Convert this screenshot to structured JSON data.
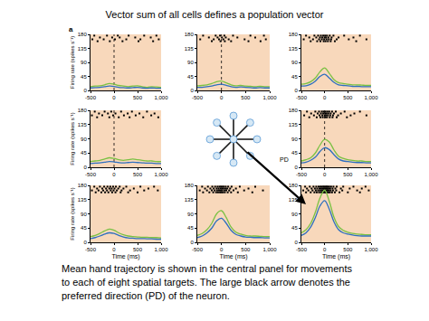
{
  "slide": {
    "title": "Vector sum of all cells defines a population vector",
    "panel_label": "a",
    "diagram_label": "PD",
    "caption": [
      "Mean hand trajectory is shown in the central panel for movements",
      "to each of eight spatial targets. The large black arrow denotes the",
      "preferred direction (PD) of the neuron."
    ]
  },
  "chart_data": [
    {
      "type": "line",
      "ylabel": "Firing rate (spikes s⁻¹)",
      "onset": 0,
      "x": [
        -500,
        -400,
        -300,
        -200,
        -100,
        0,
        100,
        200,
        300,
        400,
        500,
        600,
        700,
        800,
        900,
        1000
      ],
      "series": [
        {
          "color": "#7ac143",
          "values": [
            12,
            14,
            15,
            18,
            22,
            20,
            16,
            14,
            12,
            14,
            15,
            12,
            10,
            12,
            11,
            10
          ]
        },
        {
          "color": "#2e6fbf",
          "values": [
            8,
            9,
            10,
            12,
            14,
            13,
            10,
            9,
            8,
            9,
            10,
            8,
            7,
            8,
            7,
            7
          ]
        }
      ],
      "raster": [
        {
          "y": 176,
          "times": [
            -420,
            -150,
            80,
            310,
            640,
            900
          ]
        },
        {
          "y": 170,
          "times": [
            -300,
            -40,
            120,
            450,
            780
          ]
        },
        {
          "y": 164,
          "times": [
            -460,
            -220,
            20,
            260,
            560,
            950
          ]
        },
        {
          "y": 158,
          "times": [
            -350,
            -90,
            180,
            520,
            830
          ]
        }
      ],
      "xlim": [
        -500,
        1000
      ],
      "ylim": [
        0,
        180
      ],
      "xticks": [
        -500,
        0,
        500,
        {
          "value": 1000,
          "label": "1,000"
        }
      ],
      "yticks": [
        0,
        45,
        90,
        135,
        180
      ]
    },
    {
      "type": "line",
      "onset": 0,
      "x": [
        -500,
        -400,
        -300,
        -200,
        -100,
        0,
        100,
        200,
        300,
        400,
        500,
        600,
        700,
        800,
        900,
        1000
      ],
      "series": [
        {
          "color": "#7ac143",
          "values": [
            15,
            16,
            18,
            22,
            28,
            30,
            24,
            18,
            15,
            16,
            14,
            13,
            12,
            13,
            12,
            12
          ]
        },
        {
          "color": "#2e6fbf",
          "values": [
            10,
            10,
            12,
            14,
            18,
            20,
            16,
            12,
            10,
            11,
            10,
            9,
            8,
            9,
            8,
            8
          ]
        }
      ],
      "raster": [
        {
          "y": 176,
          "times": [
            -380,
            -120,
            -30,
            60,
            240,
            600,
            880
          ]
        },
        {
          "y": 170,
          "times": [
            -260,
            -80,
            10,
            90,
            330,
            700
          ]
        },
        {
          "y": 164,
          "times": [
            -440,
            -160,
            -50,
            40,
            150,
            480,
            920
          ]
        },
        {
          "y": 158,
          "times": [
            -200,
            -20,
            70,
            200,
            560,
            810
          ]
        }
      ],
      "xlim": [
        -500,
        1000
      ],
      "ylim": [
        0,
        180
      ],
      "xticks": [
        -500,
        0,
        500,
        {
          "value": 1000,
          "label": "1,000"
        }
      ],
      "yticks": [
        0,
        45,
        90,
        135,
        180
      ]
    },
    {
      "type": "line",
      "x": [
        -500,
        -400,
        -300,
        -200,
        -100,
        0,
        100,
        200,
        300,
        400,
        500,
        600,
        700,
        800,
        900,
        1000
      ],
      "series": [
        {
          "color": "#7ac143",
          "values": [
            20,
            22,
            28,
            40,
            60,
            72,
            55,
            35,
            25,
            22,
            20,
            18,
            18,
            17,
            16,
            16
          ]
        },
        {
          "color": "#2e6fbf",
          "values": [
            14,
            15,
            20,
            30,
            45,
            52,
            40,
            26,
            18,
            16,
            15,
            13,
            13,
            12,
            12,
            12
          ]
        }
      ],
      "raster": [
        {
          "y": 176,
          "times": [
            -400,
            -220,
            -140,
            -80,
            -30,
            10,
            50,
            110,
            190,
            420,
            760
          ]
        },
        {
          "y": 170,
          "times": [
            -330,
            -180,
            -100,
            -50,
            0,
            30,
            80,
            150,
            300,
            620
          ]
        },
        {
          "y": 164,
          "times": [
            -450,
            -250,
            -120,
            -60,
            -10,
            40,
            90,
            140,
            260,
            520,
            900
          ]
        },
        {
          "y": 158,
          "times": [
            -300,
            -160,
            -90,
            -20,
            20,
            70,
            130,
            220,
            680
          ]
        }
      ],
      "xlim": [
        -500,
        1000
      ],
      "ylim": [
        0,
        180
      ],
      "xticks": [
        -500,
        0,
        500,
        {
          "value": 1000,
          "label": "1,000"
        }
      ],
      "yticks": [
        0,
        45,
        90,
        135,
        180
      ]
    },
    {
      "type": "line",
      "ylabel": "Firing rate (spikes s⁻¹)",
      "onset": 0,
      "x": [
        -500,
        -400,
        -300,
        -200,
        -100,
        0,
        100,
        200,
        300,
        400,
        500,
        600,
        700,
        800,
        900,
        1000
      ],
      "series": [
        {
          "color": "#7ac143",
          "values": [
            18,
            20,
            22,
            26,
            30,
            28,
            24,
            22,
            24,
            26,
            24,
            22,
            20,
            20,
            18,
            18
          ]
        },
        {
          "color": "#2e6fbf",
          "values": [
            12,
            13,
            14,
            16,
            18,
            17,
            15,
            14,
            15,
            16,
            15,
            14,
            13,
            13,
            12,
            12
          ]
        }
      ],
      "raster": [
        {
          "y": 176,
          "times": [
            -410,
            -200,
            -60,
            150,
            380,
            700
          ]
        },
        {
          "y": 170,
          "times": [
            -320,
            -130,
            30,
            290,
            540,
            860
          ]
        },
        {
          "y": 164,
          "times": [
            -470,
            -250,
            -20,
            210,
            460,
            790
          ]
        },
        {
          "y": 158,
          "times": [
            -360,
            -100,
            100,
            330,
            620,
            940
          ]
        }
      ],
      "xlim": [
        -500,
        1000
      ],
      "ylim": [
        0,
        180
      ],
      "xticks": [
        -500,
        0,
        500,
        {
          "value": 1000,
          "label": "1,000"
        }
      ],
      "yticks": [
        0,
        45,
        90,
        135,
        180
      ]
    },
    {
      "type": "line",
      "onset": 0,
      "x": [
        -500,
        -400,
        -300,
        -200,
        -100,
        0,
        100,
        200,
        300,
        400,
        500,
        600,
        700,
        800,
        900,
        1000
      ],
      "series": [
        {
          "color": "#7ac143",
          "values": [
            20,
            24,
            30,
            45,
            70,
            88,
            80,
            55,
            35,
            28,
            24,
            22,
            20,
            20,
            18,
            18
          ]
        },
        {
          "color": "#2e6fbf",
          "values": [
            14,
            16,
            22,
            32,
            50,
            62,
            56,
            40,
            26,
            20,
            18,
            16,
            15,
            15,
            14,
            14
          ]
        }
      ],
      "raster": [
        {
          "y": 176,
          "times": [
            -380,
            -200,
            -120,
            -60,
            -20,
            20,
            60,
            100,
            160,
            240,
            430,
            760
          ]
        },
        {
          "y": 170,
          "times": [
            -290,
            -150,
            -80,
            -30,
            10,
            40,
            80,
            130,
            200,
            350,
            640
          ]
        },
        {
          "y": 164,
          "times": [
            -440,
            -230,
            -110,
            -50,
            0,
            30,
            70,
            120,
            180,
            290,
            560,
            900
          ]
        },
        {
          "y": 158,
          "times": [
            -330,
            -170,
            -90,
            -40,
            15,
            50,
            110,
            170,
            260,
            480
          ]
        }
      ],
      "xlim": [
        -500,
        1000
      ],
      "ylim": [
        0,
        180
      ],
      "xticks": [
        -500,
        0,
        500,
        {
          "value": 1000,
          "label": "1,000"
        }
      ],
      "yticks": [
        0,
        45,
        90,
        135,
        180
      ]
    },
    {
      "type": "line",
      "ylabel": "Firing rate (spikes s⁻¹)",
      "xlabel": "Time (ms)",
      "x": [
        -500,
        -400,
        -300,
        -200,
        -100,
        0,
        100,
        200,
        300,
        400,
        500,
        600,
        700,
        800,
        900,
        1000
      ],
      "series": [
        {
          "color": "#7ac143",
          "values": [
            18,
            22,
            28,
            36,
            42,
            38,
            30,
            24,
            20,
            18,
            17,
            16,
            16,
            15,
            15,
            14
          ]
        },
        {
          "color": "#2e6fbf",
          "values": [
            12,
            15,
            20,
            26,
            30,
            28,
            22,
            17,
            14,
            13,
            12,
            12,
            11,
            11,
            10,
            10
          ]
        }
      ],
      "raster": [
        {
          "y": 176,
          "times": [
            -420,
            -300,
            -210,
            -140,
            -80,
            -20,
            40,
            120,
            260,
            560,
            850
          ]
        },
        {
          "y": 170,
          "times": [
            -360,
            -250,
            -170,
            -100,
            -50,
            10,
            90,
            200,
            420,
            730
          ]
        },
        {
          "y": 164,
          "times": [
            -470,
            -330,
            -230,
            -150,
            -70,
            -10,
            60,
            160,
            340,
            640,
            930
          ]
        },
        {
          "y": 158,
          "times": [
            -390,
            -270,
            -190,
            -120,
            -40,
            30,
            140,
            300,
            500
          ]
        }
      ],
      "xlim": [
        -500,
        1000
      ],
      "ylim": [
        0,
        180
      ],
      "xticks": [
        -500,
        0,
        500,
        {
          "value": 1000,
          "label": "1,000"
        }
      ],
      "yticks": [
        0,
        45,
        90,
        135,
        180
      ]
    },
    {
      "type": "line",
      "xlabel": "Time (ms)",
      "x": [
        -500,
        -400,
        -300,
        -200,
        -100,
        0,
        100,
        200,
        300,
        400,
        500,
        600,
        700,
        800,
        900,
        1000
      ],
      "series": [
        {
          "color": "#7ac143",
          "values": [
            22,
            28,
            40,
            60,
            90,
            100,
            78,
            48,
            32,
            26,
            22,
            20,
            20,
            19,
            18,
            18
          ]
        },
        {
          "color": "#2e6fbf",
          "values": [
            15,
            20,
            30,
            45,
            68,
            76,
            60,
            38,
            25,
            20,
            17,
            16,
            15,
            15,
            14,
            14
          ]
        }
      ],
      "raster": [
        {
          "y": 176,
          "times": [
            -400,
            -280,
            -190,
            -130,
            -80,
            -40,
            -10,
            20,
            50,
            90,
            140,
            210,
            380,
            700
          ]
        },
        {
          "y": 170,
          "times": [
            -340,
            -230,
            -160,
            -100,
            -60,
            -20,
            10,
            40,
            80,
            120,
            180,
            300,
            560
          ]
        },
        {
          "y": 164,
          "times": [
            -450,
            -300,
            -200,
            -140,
            -90,
            -50,
            -15,
            15,
            60,
            100,
            160,
            250,
            470,
            860
          ]
        },
        {
          "y": 158,
          "times": [
            -380,
            -250,
            -170,
            -110,
            -70,
            -30,
            0,
            30,
            70,
            130,
            200,
            340,
            640
          ]
        }
      ],
      "xlim": [
        -500,
        1000
      ],
      "ylim": [
        0,
        180
      ],
      "xticks": [
        -500,
        0,
        500,
        {
          "value": 1000,
          "label": "1,000"
        }
      ],
      "yticks": [
        0,
        45,
        90,
        135,
        180
      ]
    },
    {
      "type": "line",
      "xlabel": "Time (ms)",
      "x": [
        -500,
        -400,
        -300,
        -200,
        -100,
        0,
        100,
        200,
        300,
        400,
        500,
        600,
        700,
        800,
        900,
        1000
      ],
      "series": [
        {
          "color": "#7ac143",
          "values": [
            30,
            40,
            60,
            95,
            140,
            165,
            130,
            80,
            50,
            38,
            32,
            28,
            26,
            25,
            24,
            24
          ]
        },
        {
          "color": "#2e6fbf",
          "values": [
            22,
            30,
            48,
            78,
            115,
            132,
            105,
            65,
            40,
            30,
            26,
            23,
            21,
            20,
            20,
            20
          ]
        }
      ],
      "raster": [
        {
          "y": 176,
          "times": [
            -420,
            -320,
            -240,
            -180,
            -130,
            -90,
            -60,
            -30,
            -5,
            20,
            45,
            70,
            100,
            140,
            190,
            260,
            400,
            620,
            880
          ]
        },
        {
          "y": 170,
          "times": [
            -380,
            -280,
            -210,
            -160,
            -110,
            -75,
            -45,
            -15,
            10,
            35,
            60,
            90,
            120,
            170,
            230,
            350,
            540,
            800
          ]
        },
        {
          "y": 164,
          "times": [
            -460,
            -350,
            -260,
            -190,
            -140,
            -100,
            -65,
            -35,
            -10,
            15,
            40,
            65,
            95,
            130,
            180,
            250,
            380,
            700,
            950
          ]
        },
        {
          "y": 158,
          "times": [
            -400,
            -300,
            -220,
            -170,
            -120,
            -80,
            -50,
            -20,
            5,
            30,
            55,
            85,
            115,
            160,
            220,
            320,
            500,
            760
          ]
        }
      ],
      "xlim": [
        -500,
        1000
      ],
      "ylim": [
        0,
        180
      ],
      "xticks": [
        -500,
        0,
        500,
        {
          "value": 1000,
          "label": "1,000"
        }
      ],
      "yticks": [
        0,
        45,
        90,
        135,
        180
      ]
    }
  ]
}
